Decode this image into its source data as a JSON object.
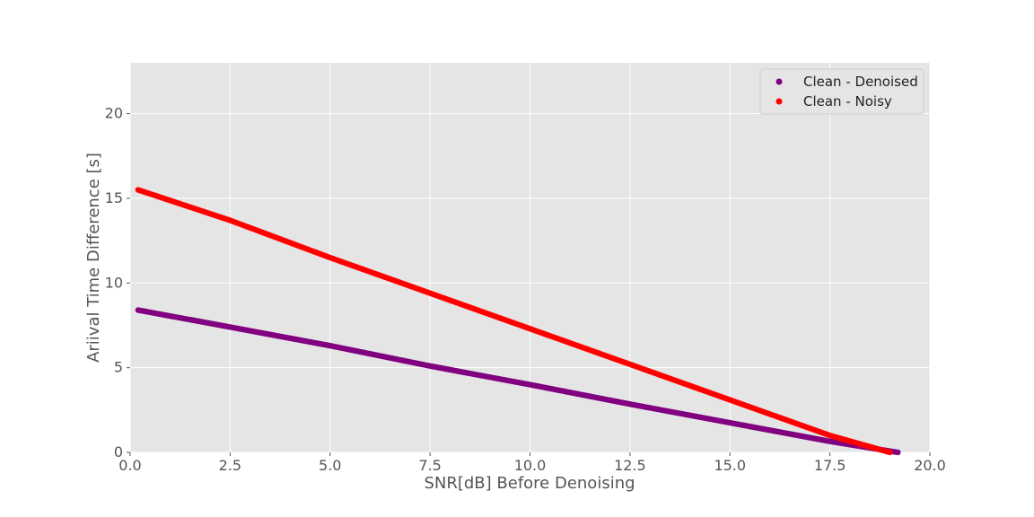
{
  "chart_data": {
    "type": "scatter",
    "title": "",
    "xlabel": "SNR[dB] Before Denoising",
    "ylabel": "Ariival Time Difference [s]",
    "xlim": [
      0.0,
      20.0
    ],
    "ylim": [
      0,
      23
    ],
    "xticks": [
      "0.0",
      "2.5",
      "5.0",
      "7.5",
      "10.0",
      "12.5",
      "15.0",
      "17.5",
      "20.0"
    ],
    "yticks": [
      "0",
      "5",
      "10",
      "15",
      "20"
    ],
    "grid": true,
    "legend_position": "top-right",
    "series": [
      {
        "name": "Clean - Denoised",
        "color": "#800080",
        "x_range": [
          0.2,
          19.2
        ],
        "points": [
          [
            0.2,
            8.4
          ],
          [
            2.5,
            7.4
          ],
          [
            5.0,
            6.3
          ],
          [
            7.5,
            5.1
          ],
          [
            10.0,
            4.0
          ],
          [
            12.5,
            2.85
          ],
          [
            15.0,
            1.75
          ],
          [
            17.5,
            0.65
          ],
          [
            19.2,
            0.0
          ]
        ]
      },
      {
        "name": "Clean - Noisy",
        "color": "#ff0000",
        "x_range": [
          0.2,
          19.0
        ],
        "points": [
          [
            0.2,
            15.5
          ],
          [
            2.5,
            13.7
          ],
          [
            5.0,
            11.5
          ],
          [
            7.5,
            9.4
          ],
          [
            10.0,
            7.3
          ],
          [
            12.5,
            5.2
          ],
          [
            15.0,
            3.1
          ],
          [
            17.5,
            1.0
          ],
          [
            19.0,
            0.0
          ]
        ]
      }
    ]
  }
}
